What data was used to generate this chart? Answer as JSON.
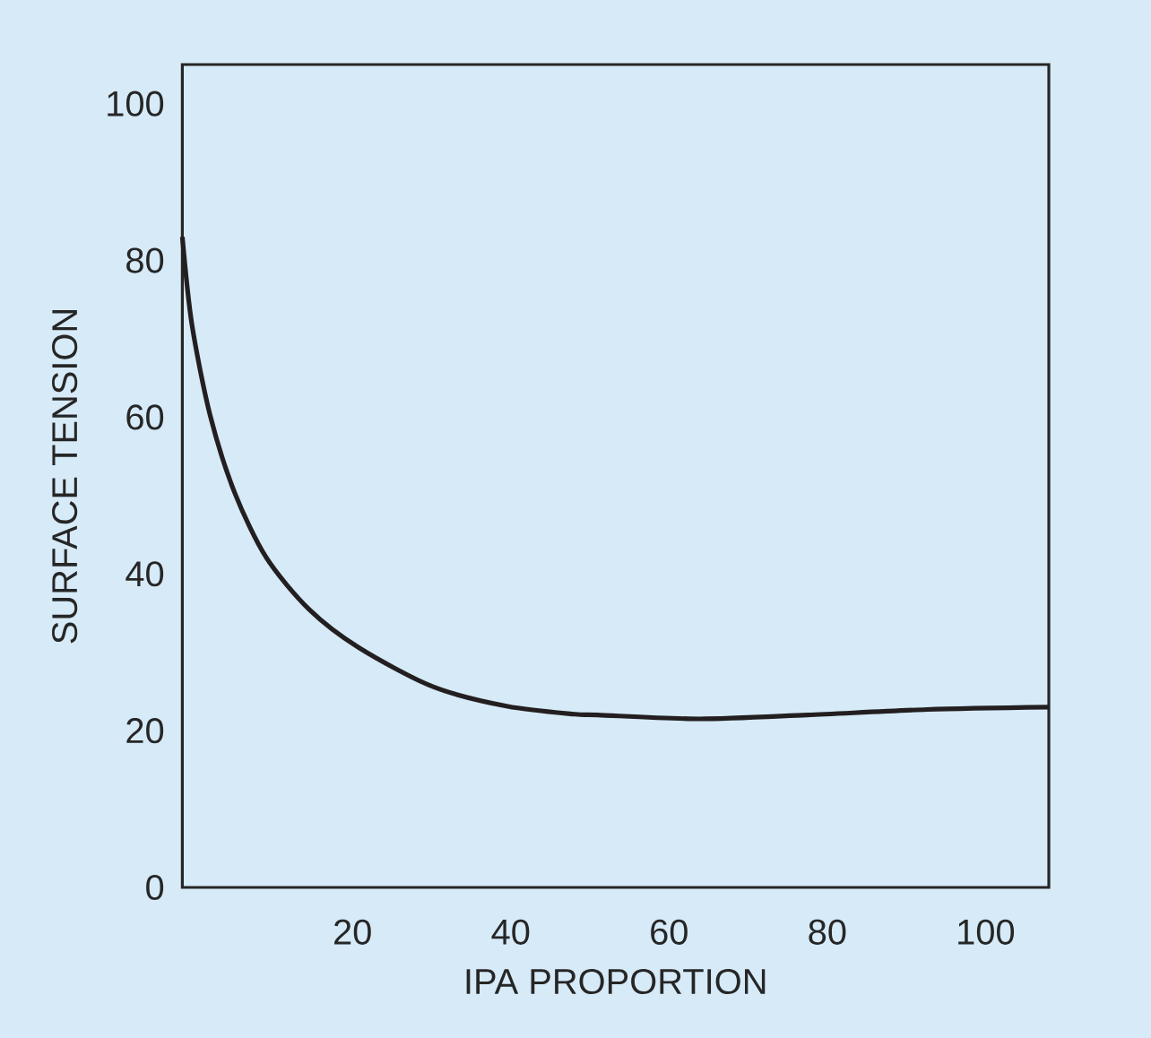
{
  "chart_data": {
    "type": "line",
    "xlabel": "IPA PROPORTION",
    "ylabel": "SURFACE TENSION",
    "xlim": [
      -1.5,
      108
    ],
    "ylim": [
      0,
      105
    ],
    "xticks": [
      20,
      40,
      60,
      80,
      100
    ],
    "yticks": [
      0,
      20,
      40,
      60,
      80,
      100
    ],
    "grid": false,
    "legend": false,
    "marker": "none",
    "line_style": "solid",
    "series": [
      {
        "color": "#231f20",
        "x": [
          -1.5,
          -0.3,
          2.0,
          5.1,
          9.1,
          14.5,
          20.8,
          30.2,
          39.6,
          48.1,
          51,
          63.9,
          77.5,
          92.6,
          108
        ],
        "values": [
          83,
          71.9,
          60.3,
          50.4,
          42.1,
          35.5,
          30.6,
          25.6,
          23.1,
          22.1,
          22.0,
          21.5,
          22.0,
          22.7,
          23.0
        ]
      }
    ]
  }
}
